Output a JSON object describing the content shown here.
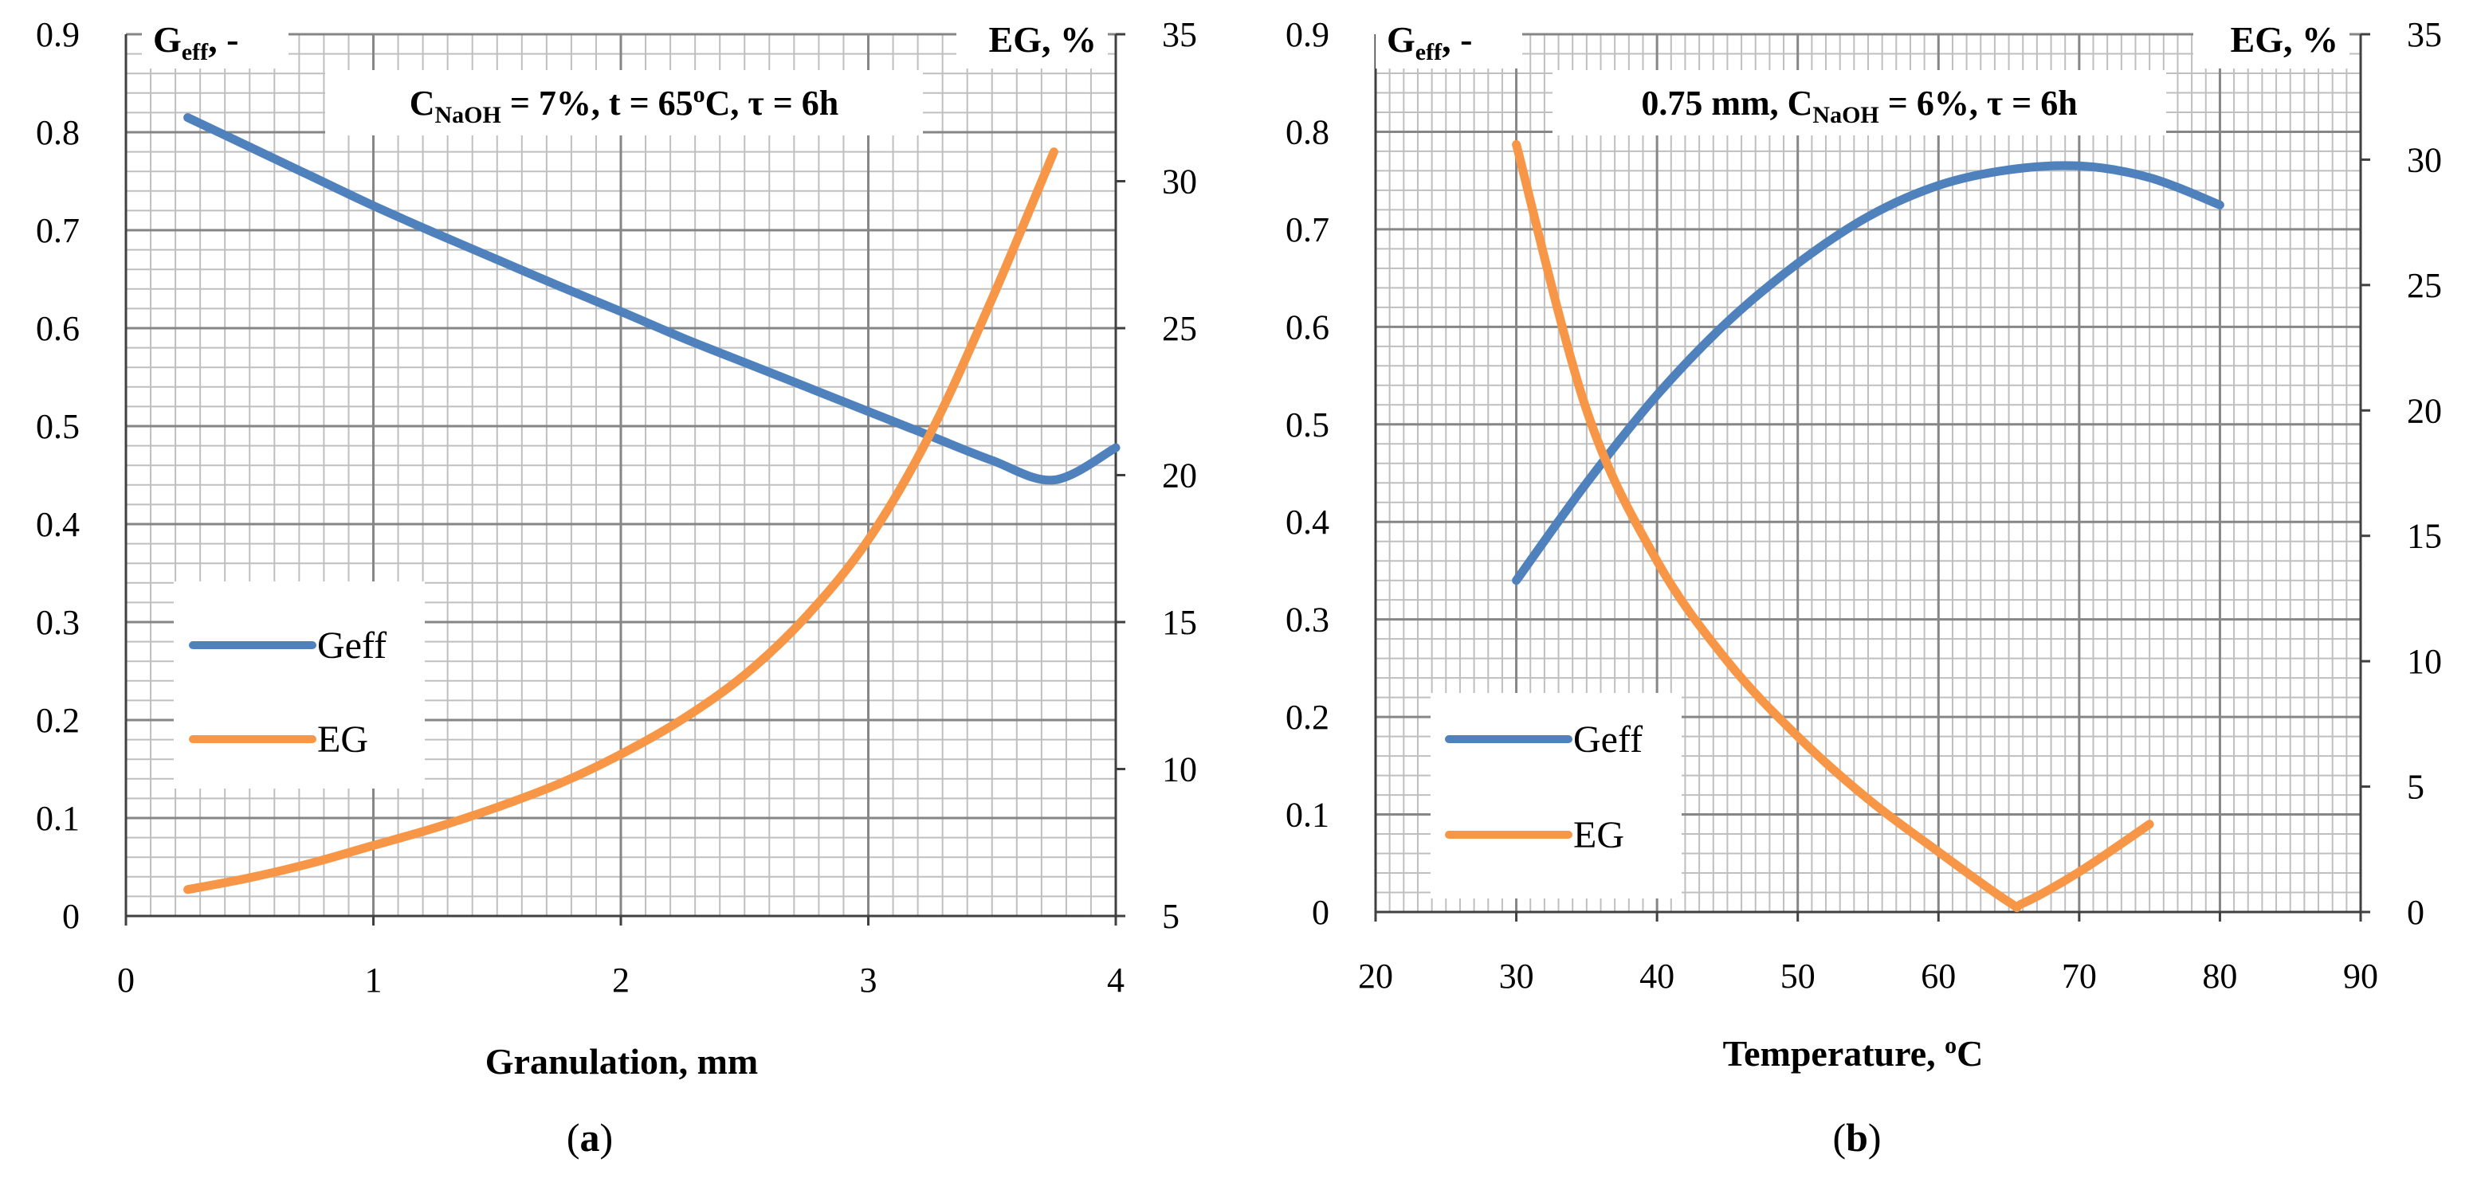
{
  "colors": {
    "geff": "#4f81bd",
    "eg": "#f79646",
    "grid_major": "#868686",
    "grid_minor": "#bfbfbf",
    "axis": "#404040"
  },
  "chart_data": [
    {
      "type": "line",
      "panel_label": "a",
      "corner_left": {
        "main": "G",
        "sub": "eff",
        "tail": ", -"
      },
      "corner_right": "EG, %",
      "condition": {
        "c": "C",
        "c_sub": "NaOH",
        "rest1": " = 7%, t = 65",
        "sup": "o",
        "rest2": "C, τ = 6h"
      },
      "xlabel": "Granulation, mm",
      "xlim": [
        0,
        4
      ],
      "xticks": [
        "0",
        "1",
        "2",
        "3",
        "4"
      ],
      "ylim_left": [
        0,
        0.9
      ],
      "yticks_left": [
        "0",
        "0.1",
        "0.2",
        "0.3",
        "0.4",
        "0.5",
        "0.6",
        "0.7",
        "0.8",
        "0.9"
      ],
      "ylim_right": [
        5,
        35
      ],
      "yticks_right": [
        "5",
        "10",
        "15",
        "20",
        "25",
        "30",
        "35"
      ],
      "legend": [
        "Geff",
        "EG"
      ],
      "series": [
        {
          "name": "Geff",
          "axis": "left",
          "x": [
            0.25,
            0.5,
            0.75,
            1,
            1.25,
            1.5,
            1.75,
            2,
            2.25,
            2.5,
            2.75,
            3,
            3.25,
            3.5,
            3.75,
            4
          ],
          "y": [
            0.815,
            0.785,
            0.755,
            0.725,
            0.697,
            0.67,
            0.643,
            0.617,
            0.59,
            0.565,
            0.54,
            0.515,
            0.49,
            0.465,
            0.445,
            0.478
          ]
        },
        {
          "name": "EG",
          "axis": "right",
          "x": [
            0.25,
            0.5,
            0.75,
            1,
            1.25,
            1.5,
            1.75,
            2,
            2.25,
            2.5,
            2.75,
            3,
            3.25,
            3.5,
            3.75
          ],
          "y": [
            5.9,
            6.3,
            6.8,
            7.4,
            8.0,
            8.7,
            9.5,
            10.5,
            11.7,
            13.2,
            15.2,
            17.8,
            21.4,
            26.0,
            31.0
          ]
        }
      ]
    },
    {
      "type": "line",
      "panel_label": "b",
      "corner_left": {
        "main": "G",
        "sub": "eff",
        "tail": ", -"
      },
      "corner_right": "EG, %",
      "condition": {
        "c": "0.75 mm, C",
        "c_sub": "NaOH",
        "rest1": " = 6%, τ = 6h",
        "sup": "",
        "rest2": ""
      },
      "xlabel_main": "Temperature, ",
      "xlabel_sup": "o",
      "xlabel_tail": "C",
      "xlim": [
        20,
        90
      ],
      "xticks": [
        "20",
        "30",
        "40",
        "50",
        "60",
        "70",
        "80",
        "90"
      ],
      "ylim_left": [
        0,
        0.9
      ],
      "yticks_left": [
        "0",
        "0.1",
        "0.2",
        "0.3",
        "0.4",
        "0.5",
        "0.6",
        "0.7",
        "0.8",
        "0.9"
      ],
      "ylim_right": [
        0,
        35
      ],
      "yticks_right": [
        "0",
        "5",
        "10",
        "15",
        "20",
        "25",
        "30",
        "35"
      ],
      "legend": [
        "Geff",
        "EG"
      ],
      "series": [
        {
          "name": "Geff",
          "axis": "left",
          "x": [
            30,
            35,
            40,
            45,
            50,
            55,
            60,
            65,
            70,
            75,
            80
          ],
          "y": [
            0.34,
            0.44,
            0.53,
            0.605,
            0.665,
            0.713,
            0.745,
            0.761,
            0.765,
            0.753,
            0.725
          ]
        },
        {
          "name": "EG",
          "axis": "right",
          "x": [
            30,
            35,
            40,
            45,
            50,
            55,
            60,
            65,
            66,
            70,
            75
          ],
          "y": [
            30.6,
            20.0,
            14.0,
            10.0,
            7.0,
            4.5,
            2.4,
            0.4,
            0.35,
            1.6,
            3.5
          ]
        }
      ]
    }
  ]
}
